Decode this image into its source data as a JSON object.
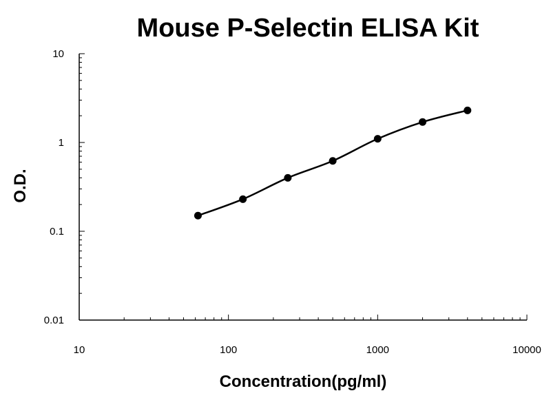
{
  "chart_data": {
    "type": "scatter",
    "title": "Mouse P-Selectin ELISA Kit",
    "xlabel": "Concentration(pg/ml)",
    "ylabel": "O.D.",
    "x_scale": "log",
    "y_scale": "log",
    "xlim": [
      10,
      10000
    ],
    "ylim": [
      0.01,
      10
    ],
    "x_ticks": [
      "10",
      "100",
      "1000",
      "10000"
    ],
    "y_ticks": [
      "0.01",
      "0.1",
      "1",
      "10"
    ],
    "grid": false,
    "legend": "none",
    "series": [
      {
        "x": [
          62.5,
          125,
          250,
          500,
          1000,
          2000,
          4000
        ],
        "y": [
          0.15,
          0.23,
          0.4,
          0.62,
          1.1,
          1.7,
          2.3
        ],
        "marker": "circle",
        "line": "smooth",
        "color": "#000000"
      }
    ]
  }
}
